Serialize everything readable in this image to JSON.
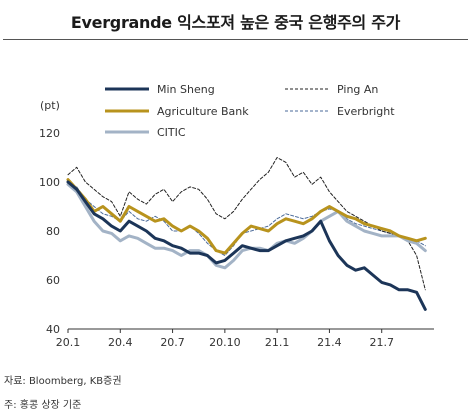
{
  "title": "Evergrande 익스포져 높은 중국 은행주의 주가",
  "source": "자료: Bloomberg, KB증권",
  "note": "주: 홍콩 상장 기준",
  "chart_data": {
    "type": "line",
    "ylabel": "(pt)",
    "ylim": [
      40,
      120
    ],
    "yticks": [
      40,
      60,
      80,
      100,
      120
    ],
    "xlim": [
      0,
      21
    ],
    "xticks": [
      {
        "pos": 0,
        "label": "20.1"
      },
      {
        "pos": 3,
        "label": "20.4"
      },
      {
        "pos": 6,
        "label": "20.7"
      },
      {
        "pos": 9,
        "label": "20.10"
      },
      {
        "pos": 12,
        "label": "21.1"
      },
      {
        "pos": 15,
        "label": "21.4"
      },
      {
        "pos": 18,
        "label": "21.7"
      }
    ],
    "legend_position": "top",
    "series": [
      {
        "name": "Min Sheng",
        "color": "#1c3558",
        "dash": "solid",
        "width": 3,
        "points": [
          [
            0,
            100
          ],
          [
            0.5,
            97
          ],
          [
            1,
            92
          ],
          [
            1.5,
            87
          ],
          [
            2,
            85
          ],
          [
            2.5,
            82
          ],
          [
            3,
            80
          ],
          [
            3.5,
            84
          ],
          [
            4,
            82
          ],
          [
            4.5,
            80
          ],
          [
            5,
            77
          ],
          [
            5.5,
            76
          ],
          [
            6,
            74
          ],
          [
            6.5,
            73
          ],
          [
            7,
            71
          ],
          [
            7.5,
            71
          ],
          [
            8,
            70
          ],
          [
            8.5,
            67
          ],
          [
            9,
            68
          ],
          [
            9.5,
            71
          ],
          [
            10,
            74
          ],
          [
            10.5,
            73
          ],
          [
            11,
            72
          ],
          [
            11.5,
            72
          ],
          [
            12,
            74
          ],
          [
            12.5,
            76
          ],
          [
            13,
            77
          ],
          [
            13.5,
            78
          ],
          [
            14,
            80
          ],
          [
            14.5,
            84
          ],
          [
            15,
            76
          ],
          [
            15.5,
            70
          ],
          [
            16,
            66
          ],
          [
            16.5,
            64
          ],
          [
            17,
            65
          ],
          [
            17.5,
            62
          ],
          [
            18,
            59
          ],
          [
            18.5,
            58
          ],
          [
            19,
            56
          ],
          [
            19.5,
            56
          ],
          [
            20,
            55
          ],
          [
            20.5,
            48
          ]
        ]
      },
      {
        "name": "Ping An",
        "color": "#222222",
        "dash": "3,2",
        "width": 1,
        "points": [
          [
            0,
            103
          ],
          [
            0.5,
            106
          ],
          [
            1,
            100
          ],
          [
            1.5,
            97
          ],
          [
            2,
            94
          ],
          [
            2.5,
            92
          ],
          [
            3,
            86
          ],
          [
            3.5,
            96
          ],
          [
            4,
            93
          ],
          [
            4.5,
            91
          ],
          [
            5,
            95
          ],
          [
            5.5,
            97
          ],
          [
            6,
            92
          ],
          [
            6.5,
            96
          ],
          [
            7,
            98
          ],
          [
            7.5,
            97
          ],
          [
            8,
            93
          ],
          [
            8.5,
            87
          ],
          [
            9,
            85
          ],
          [
            9.5,
            88
          ],
          [
            10,
            93
          ],
          [
            10.5,
            97
          ],
          [
            11,
            101
          ],
          [
            11.5,
            104
          ],
          [
            12,
            110
          ],
          [
            12.5,
            108
          ],
          [
            13,
            102
          ],
          [
            13.5,
            104
          ],
          [
            14,
            99
          ],
          [
            14.5,
            102
          ],
          [
            15,
            96
          ],
          [
            15.5,
            92
          ],
          [
            16,
            88
          ],
          [
            16.5,
            86
          ],
          [
            17,
            84
          ],
          [
            17.5,
            82
          ],
          [
            18,
            80
          ],
          [
            18.5,
            79
          ],
          [
            19,
            78
          ],
          [
            19.5,
            76
          ],
          [
            20,
            70
          ],
          [
            20.5,
            56
          ]
        ]
      },
      {
        "name": "Agriculture Bank",
        "color": "#b8931d",
        "dash": "solid",
        "width": 3,
        "points": [
          [
            0,
            101
          ],
          [
            0.5,
            97
          ],
          [
            1,
            93
          ],
          [
            1.5,
            88
          ],
          [
            2,
            90
          ],
          [
            2.5,
            87
          ],
          [
            3,
            84
          ],
          [
            3.5,
            90
          ],
          [
            4,
            88
          ],
          [
            4.5,
            86
          ],
          [
            5,
            84
          ],
          [
            5.5,
            85
          ],
          [
            6,
            82
          ],
          [
            6.5,
            80
          ],
          [
            7,
            82
          ],
          [
            7.5,
            80
          ],
          [
            8,
            77
          ],
          [
            8.5,
            72
          ],
          [
            9,
            71
          ],
          [
            9.5,
            75
          ],
          [
            10,
            79
          ],
          [
            10.5,
            82
          ],
          [
            11,
            81
          ],
          [
            11.5,
            80
          ],
          [
            12,
            83
          ],
          [
            12.5,
            85
          ],
          [
            13,
            84
          ],
          [
            13.5,
            83
          ],
          [
            14,
            85
          ],
          [
            14.5,
            88
          ],
          [
            15,
            90
          ],
          [
            15.5,
            88
          ],
          [
            16,
            86
          ],
          [
            16.5,
            85
          ],
          [
            17,
            83
          ],
          [
            17.5,
            82
          ],
          [
            18,
            81
          ],
          [
            18.5,
            80
          ],
          [
            19,
            78
          ],
          [
            19.5,
            77
          ],
          [
            20,
            76
          ],
          [
            20.5,
            77
          ]
        ]
      },
      {
        "name": "Everbright",
        "color": "#4a6a99",
        "dash": "3,2",
        "width": 1,
        "points": [
          [
            0,
            100
          ],
          [
            0.5,
            98
          ],
          [
            1,
            93
          ],
          [
            1.5,
            90
          ],
          [
            2,
            87
          ],
          [
            2.5,
            86
          ],
          [
            3,
            84
          ],
          [
            3.5,
            88
          ],
          [
            4,
            85
          ],
          [
            4.5,
            84
          ],
          [
            5,
            86
          ],
          [
            5.5,
            84
          ],
          [
            6,
            80
          ],
          [
            6.5,
            80
          ],
          [
            7,
            82
          ],
          [
            7.5,
            79
          ],
          [
            8,
            75
          ],
          [
            8.5,
            72
          ],
          [
            9,
            70
          ],
          [
            9.5,
            74
          ],
          [
            10,
            79
          ],
          [
            10.5,
            80
          ],
          [
            11,
            81
          ],
          [
            11.5,
            82
          ],
          [
            12,
            85
          ],
          [
            12.5,
            87
          ],
          [
            13,
            86
          ],
          [
            13.5,
            85
          ],
          [
            14,
            86
          ],
          [
            14.5,
            88
          ],
          [
            15,
            89
          ],
          [
            15.5,
            88
          ],
          [
            16,
            85
          ],
          [
            16.5,
            83
          ],
          [
            17,
            82
          ],
          [
            17.5,
            81
          ],
          [
            18,
            80
          ],
          [
            18.5,
            79
          ],
          [
            19,
            78
          ],
          [
            19.5,
            77
          ],
          [
            20,
            76
          ],
          [
            20.5,
            74
          ]
        ]
      },
      {
        "name": "CITIC",
        "color": "#a3b3c6",
        "dash": "solid",
        "width": 3,
        "points": [
          [
            0,
            99
          ],
          [
            0.5,
            96
          ],
          [
            1,
            90
          ],
          [
            1.5,
            84
          ],
          [
            2,
            80
          ],
          [
            2.5,
            79
          ],
          [
            3,
            76
          ],
          [
            3.5,
            78
          ],
          [
            4,
            77
          ],
          [
            4.5,
            75
          ],
          [
            5,
            73
          ],
          [
            5.5,
            73
          ],
          [
            6,
            72
          ],
          [
            6.5,
            70
          ],
          [
            7,
            72
          ],
          [
            7.5,
            72
          ],
          [
            8,
            70
          ],
          [
            8.5,
            66
          ],
          [
            9,
            65
          ],
          [
            9.5,
            68
          ],
          [
            10,
            72
          ],
          [
            10.5,
            73
          ],
          [
            11,
            73
          ],
          [
            11.5,
            72
          ],
          [
            12,
            75
          ],
          [
            12.5,
            76
          ],
          [
            13,
            75
          ],
          [
            13.5,
            77
          ],
          [
            14,
            80
          ],
          [
            14.5,
            84
          ],
          [
            15,
            86
          ],
          [
            15.5,
            88
          ],
          [
            16,
            84
          ],
          [
            16.5,
            82
          ],
          [
            17,
            80
          ],
          [
            17.5,
            79
          ],
          [
            18,
            78
          ],
          [
            18.5,
            78
          ],
          [
            19,
            78
          ],
          [
            19.5,
            76
          ],
          [
            20,
            75
          ],
          [
            20.5,
            72
          ]
        ]
      }
    ]
  }
}
